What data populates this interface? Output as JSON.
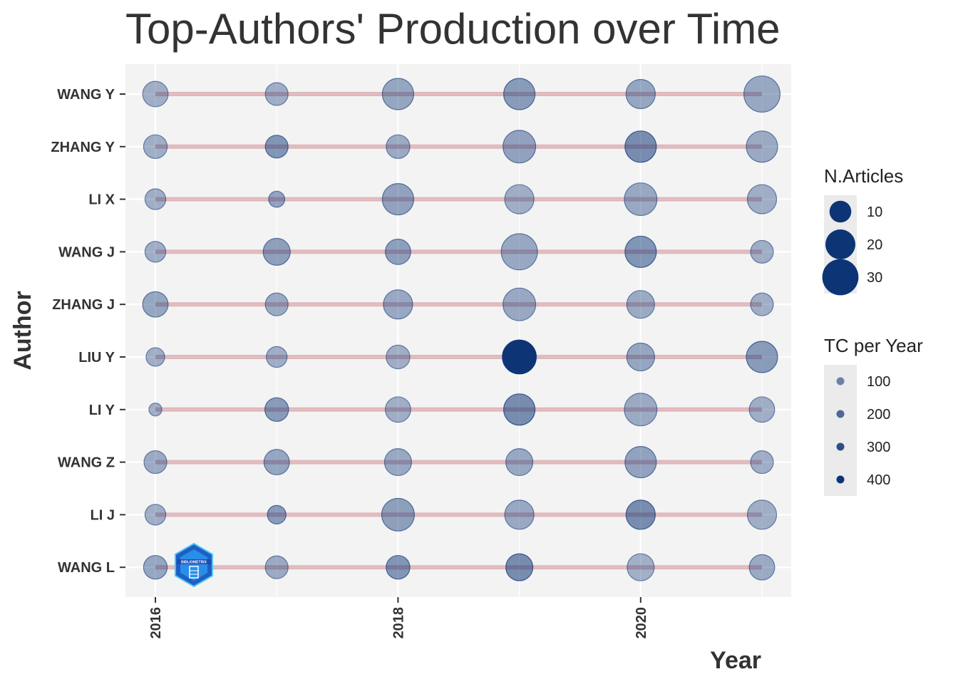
{
  "chart_data": {
    "type": "scatter",
    "title": "Top-Authors' Production over Time",
    "xlabel": "Year",
    "ylabel": "Author",
    "x_ticks": [
      "2016",
      "2018",
      "2020"
    ],
    "xlim": [
      2016,
      2021
    ],
    "authors": [
      "WANG Y",
      "ZHANG Y",
      "LI X",
      "WANG J",
      "ZHANG J",
      "LIU Y",
      "LI Y",
      "WANG Z",
      "LI J",
      "WANG L"
    ],
    "years": [
      2016,
      2017,
      2018,
      2019,
      2020,
      2021
    ],
    "points": {
      "WANG Y": {
        "articles": [
          14,
          11,
          22,
          22,
          19,
          30
        ],
        "tc_per_year": [
          60,
          60,
          90,
          130,
          90,
          80
        ]
      },
      "ZHANG Y": {
        "articles": [
          12,
          11,
          12,
          24,
          22,
          22
        ],
        "tc_per_year": [
          60,
          150,
          70,
          100,
          180,
          70
        ]
      },
      "LI X": {
        "articles": [
          9,
          5,
          22,
          19,
          24,
          19
        ],
        "tc_per_year": [
          60,
          100,
          100,
          60,
          80,
          60
        ]
      },
      "WANG J": {
        "articles": [
          9,
          16,
          14,
          30,
          22,
          11
        ],
        "tc_per_year": [
          60,
          110,
          110,
          80,
          150,
          60
        ]
      },
      "ZHANG J": {
        "articles": [
          14,
          11,
          19,
          24,
          17,
          11
        ],
        "tc_per_year": [
          90,
          70,
          80,
          80,
          70,
          60
        ]
      },
      "LIU Y": {
        "articles": [
          7,
          9,
          12,
          26,
          17,
          22
        ],
        "tc_per_year": [
          60,
          60,
          60,
          500,
          90,
          130
        ]
      },
      "LI Y": {
        "articles": [
          3,
          12,
          14,
          22,
          24,
          14
        ],
        "tc_per_year": [
          60,
          130,
          60,
          180,
          70,
          60
        ]
      },
      "WANG Z": {
        "articles": [
          11,
          14,
          16,
          16,
          22,
          11
        ],
        "tc_per_year": [
          70,
          90,
          80,
          80,
          100,
          60
        ]
      },
      "LI J": {
        "articles": [
          9,
          7,
          24,
          19,
          19,
          19
        ],
        "tc_per_year": [
          60,
          130,
          110,
          80,
          180,
          60
        ]
      },
      "WANG L": {
        "articles": [
          12,
          11,
          12,
          16,
          16,
          14
        ],
        "tc_per_year": [
          90,
          70,
          150,
          180,
          50,
          70
        ]
      }
    },
    "legend_size": {
      "title": "N.Articles",
      "labels": [
        "10",
        "20",
        "30"
      ],
      "values": [
        10,
        20,
        30
      ]
    },
    "legend_color": {
      "title": "TC per Year",
      "labels": [
        "100",
        "200",
        "300",
        "400"
      ],
      "values": [
        100,
        200,
        300,
        400
      ]
    },
    "point_color": "#0d3576",
    "line_color": "#c97b84",
    "panel_color": "#f3f3f3",
    "grid": true,
    "legend_position": "right"
  },
  "logo": {
    "text": "BIBLIOMETRIX"
  }
}
